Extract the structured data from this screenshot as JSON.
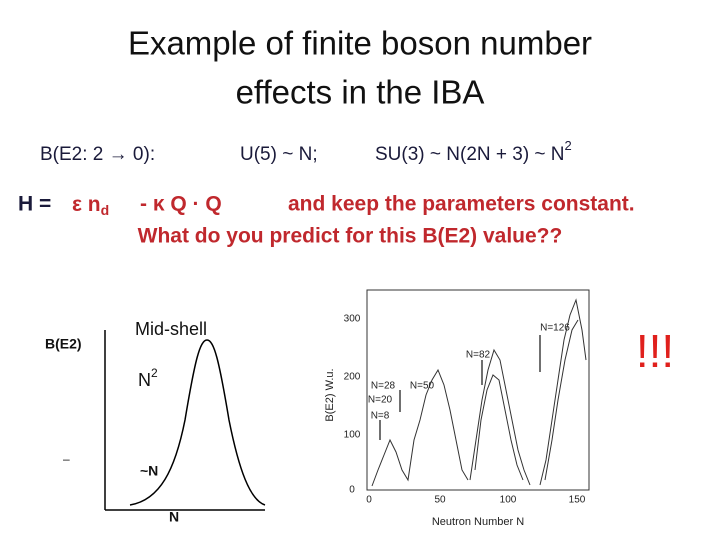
{
  "title": [
    "Example of finite boson number",
    "effects in the IBA"
  ],
  "b_e2_line": {
    "label": "B(E2: 2 → 0):",
    "u5": "U(5) ~ N;",
    "su3": "SU(3) ~ N(2N + 3) ~ N",
    "su3_sup": "2"
  },
  "hamiltonian": {
    "h": "H =",
    "eps": "ε n",
    "sub": "d",
    "kappa": "- κ Q · Q",
    "note": "and keep the parameters constant."
  },
  "question": "What do you predict for this B(E2) value??",
  "sketch": {
    "y_label": "B(E2)",
    "mid": "Mid-shell",
    "n2": "N",
    "n2_sup": "2",
    "dash": "–",
    "small_n": "~N",
    "x_label": "N"
  },
  "plot": {
    "y_label": "B(E2) W.u.",
    "x_label": "Neutron Number N",
    "yticks": [
      "0",
      "100",
      "200",
      "300"
    ],
    "xticks": [
      "0",
      "50",
      "100",
      "150"
    ],
    "annotations": [
      "N=126",
      "N=82",
      "N=28",
      "N=50",
      "N=20",
      "N=8"
    ]
  },
  "exclaim": "!!!"
}
